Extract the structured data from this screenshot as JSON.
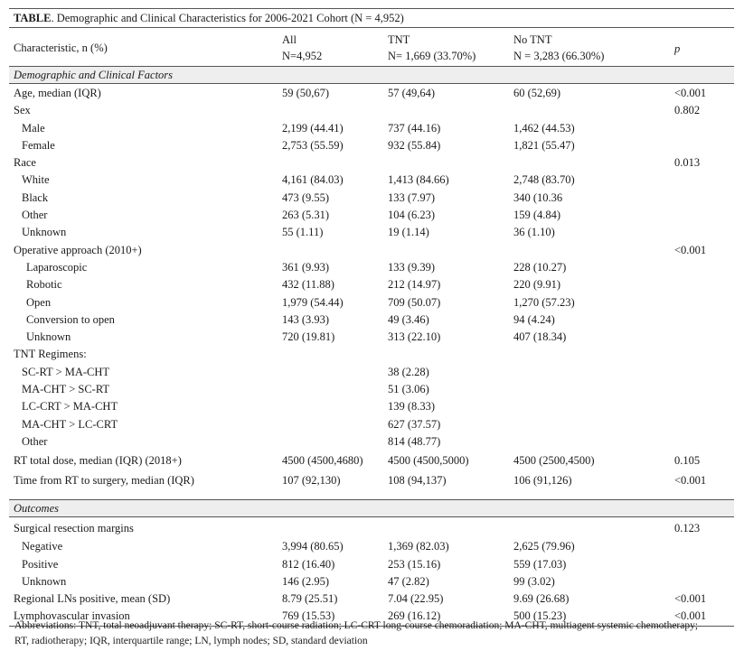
{
  "title_bold": "TABLE",
  "title_rest": ". Demographic and Clinical Characteristics for 2006-2021 Cohort (N = 4,952)",
  "header": {
    "characteristic": "Characteristic, n (%)",
    "all_label": "All",
    "all_n": "N=4,952",
    "tnt_label": "TNT",
    "tnt_n": "N= 1,669 (33.70%)",
    "notnt_label": "No TNT",
    "notnt_n": "N = 3,283 (66.30%)",
    "p": "p"
  },
  "sections": [
    {
      "title": "Demographic and Clinical Factors",
      "rows": [
        {
          "label": "Age, median (IQR)",
          "indent": 0,
          "all": "59 (50,67)",
          "tnt": "57 (49,64)",
          "notnt": "60 (52,69)",
          "p": "<0.001"
        },
        {
          "label": "Sex",
          "indent": 0,
          "all": "",
          "tnt": "",
          "notnt": "",
          "p": "0.802"
        },
        {
          "label": "Male",
          "indent": 1,
          "all": "2,199 (44.41)",
          "tnt": "737 (44.16)",
          "notnt": "1,462 (44.53)",
          "p": ""
        },
        {
          "label": "Female",
          "indent": 1,
          "all": "2,753 (55.59)",
          "tnt": "932 (55.84)",
          "notnt": "1,821 (55.47)",
          "p": ""
        },
        {
          "label": "Race",
          "indent": 0,
          "all": "",
          "tnt": "",
          "notnt": "",
          "p": "0.013"
        },
        {
          "label": "White",
          "indent": 1,
          "all": "4,161 (84.03)",
          "tnt": "1,413 (84.66)",
          "notnt": "2,748 (83.70)",
          "p": ""
        },
        {
          "label": "Black",
          "indent": 1,
          "all": "473 (9.55)",
          "tnt": "133 (7.97)",
          "notnt": "340 (10.36",
          "p": ""
        },
        {
          "label": "Other",
          "indent": 1,
          "all": "263 (5.31)",
          "tnt": "104 (6.23)",
          "notnt": "159 (4.84)",
          "p": ""
        },
        {
          "label": "Unknown",
          "indent": 1,
          "all": "55 (1.11)",
          "tnt": "19 (1.14)",
          "notnt": "36 (1.10)",
          "p": ""
        },
        {
          "label": "Operative approach (2010+)",
          "indent": 0,
          "all": "",
          "tnt": "",
          "notnt": "",
          "p": "<0.001"
        },
        {
          "label": "Laparoscopic",
          "indent": 2,
          "all": "361 (9.93)",
          "tnt": "133 (9.39)",
          "notnt": "228 (10.27)",
          "p": ""
        },
        {
          "label": "Robotic",
          "indent": 2,
          "all": "432 (11.88)",
          "tnt": "212 (14.97)",
          "notnt": "220 (9.91)",
          "p": ""
        },
        {
          "label": "Open",
          "indent": 2,
          "all": "1,979 (54.44)",
          "tnt": "709 (50.07)",
          "notnt": "1,270 (57.23)",
          "p": ""
        },
        {
          "label": "Conversion to open",
          "indent": 2,
          "all": "143 (3.93)",
          "tnt": "49 (3.46)",
          "notnt": "94 (4.24)",
          "p": ""
        },
        {
          "label": "Unknown",
          "indent": 2,
          "all": "720 (19.81)",
          "tnt": "313 (22.10)",
          "notnt": "407 (18.34)",
          "p": ""
        },
        {
          "label": "TNT Regimens:",
          "indent": 0,
          "all": "",
          "tnt": "",
          "notnt": "",
          "p": ""
        },
        {
          "label": "SC-RT > MA-CHT",
          "indent": 1,
          "all": "",
          "tnt": "38 (2.28)",
          "notnt": "",
          "p": ""
        },
        {
          "label": "MA-CHT > SC-RT",
          "indent": 1,
          "all": "",
          "tnt": "51 (3.06)",
          "notnt": "",
          "p": ""
        },
        {
          "label": "LC-CRT > MA-CHT",
          "indent": 1,
          "all": "",
          "tnt": "139 (8.33)",
          "notnt": "",
          "p": ""
        },
        {
          "label": "MA-CHT > LC-CRT",
          "indent": 1,
          "all": "",
          "tnt": "627 (37.57)",
          "notnt": "",
          "p": ""
        },
        {
          "label": "Other",
          "indent": 1,
          "all": "",
          "tnt": "814 (48.77)",
          "notnt": "",
          "p": ""
        },
        {
          "label": "RT total dose, median (IQR) (2018+)",
          "indent": 0,
          "all": "4500 (4500,4680)",
          "tnt": "4500 (4500,5000)",
          "notnt": "4500 (2500,4500)",
          "p": "0.105",
          "tall": true
        },
        {
          "label": "Time from RT to surgery, median (IQR)",
          "indent": 0,
          "all": "107 (92,130)",
          "tnt": "108 (94,137)",
          "notnt": "106 (91,126)",
          "p": "<0.001",
          "tall": true
        }
      ]
    },
    {
      "title": "Outcomes",
      "rows": [
        {
          "label": "Surgical resection margins",
          "indent": 0,
          "all": "",
          "tnt": "",
          "notnt": "",
          "p": "0.123",
          "tall": true
        },
        {
          "label": "Negative",
          "indent": 1,
          "all": "3,994 (80.65)",
          "tnt": "1,369 (82.03)",
          "notnt": "2,625 (79.96)",
          "p": ""
        },
        {
          "label": "Positive",
          "indent": 1,
          "all": "812 (16.40)",
          "tnt": "253 (15.16)",
          "notnt": "559 (17.03)",
          "p": ""
        },
        {
          "label": "Unknown",
          "indent": 1,
          "all": "146 (2.95)",
          "tnt": "47 (2.82)",
          "notnt": "99 (3.02)",
          "p": ""
        },
        {
          "label": "Regional LNs positive, mean (SD)",
          "indent": 0,
          "all": "8.79 (25.51)",
          "tnt": "7.04 (22.95)",
          "notnt": "9.69 (26.68)",
          "p": "<0.001"
        },
        {
          "label": "Lymphovascular invasion",
          "indent": 0,
          "all": "769 (15.53)",
          "tnt": "269 (16.12)",
          "notnt": "500 (15.23)",
          "p": "<0.001"
        }
      ]
    }
  ],
  "footer": {
    "line1": "Abbreviations: TNT, total neoadjuvant therapy; SC-RT, short-course radiation; LC-CRT long-course chemoradiation; MA-CHT, multiagent systemic chemotherapy;",
    "line2": "RT, radiotherapy; IQR, interquartile range; LN, lymph nodes; SD, standard deviation"
  }
}
